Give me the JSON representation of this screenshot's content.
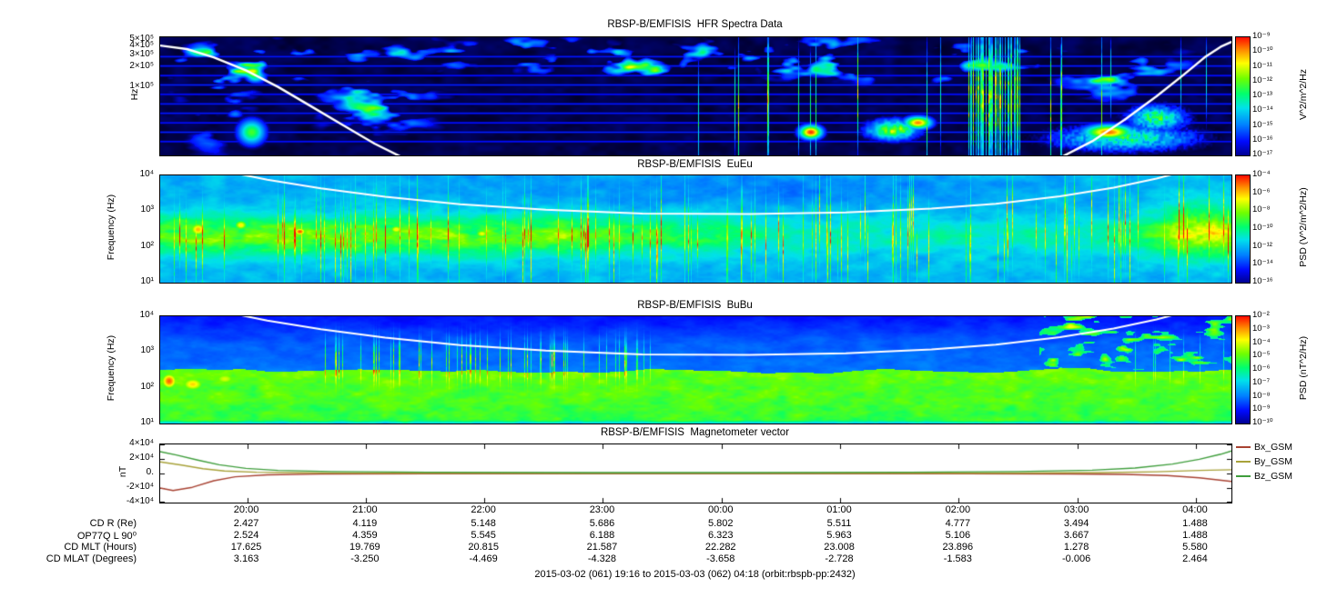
{
  "figure": {
    "caption": "2015-03-02 (061) 19:16 to 2015-03-03 (062) 04:18 (orbit:rbspb-pp:2432)"
  },
  "time_axis": {
    "tick_labels": [
      "20:00",
      "21:00",
      "22:00",
      "23:00",
      "00:00",
      "01:00",
      "02:00",
      "03:00",
      "04:00"
    ],
    "tick_positions": [
      0.0812,
      0.1919,
      0.3026,
      0.4133,
      0.524,
      0.6347,
      0.7454,
      0.8561,
      0.9668
    ]
  },
  "ephemeris_table": {
    "rows": [
      {
        "label": "CD R (Re)",
        "values": [
          "2.427",
          "4.119",
          "5.148",
          "5.686",
          "5.802",
          "5.511",
          "4.777",
          "3.494",
          "1.488"
        ]
      },
      {
        "label": "OP77Q L 90⁰",
        "values": [
          "2.524",
          "4.359",
          "5.545",
          "6.188",
          "6.323",
          "5.963",
          "5.106",
          "3.667",
          "1.488"
        ]
      },
      {
        "label": "CD MLT (Hours)",
        "values": [
          "17.625",
          "19.769",
          "20.815",
          "21.587",
          "22.282",
          "23.008",
          "23.896",
          "1.278",
          "5.580"
        ]
      },
      {
        "label": "CD MLAT (Degrees)",
        "values": [
          "3.163",
          "-3.250",
          "-4.469",
          "-4.328",
          "-3.658",
          "-2.728",
          "-1.583",
          "-0.006",
          "2.464"
        ]
      }
    ]
  },
  "chart_data": [
    {
      "type": "heatmap",
      "title": "RBSP-B/EMFISIS  HFR Spectra Data",
      "ylabel": "Hz",
      "yscale": "log",
      "ylim": [
        10000,
        550000
      ],
      "yticks": [
        {
          "label": "5×10⁵",
          "pos": 0.024
        },
        {
          "label": "4×10⁵",
          "pos": 0.08
        },
        {
          "label": "3×10⁵",
          "pos": 0.152
        },
        {
          "label": "2×10⁵",
          "pos": 0.253
        },
        {
          "label": "1×10⁵",
          "pos": 0.425
        }
      ],
      "colorbar": {
        "label": "V^2/m^2/Hz",
        "tick_labels": [
          "10⁻⁹",
          "10⁻¹⁰",
          "10⁻¹¹",
          "10⁻¹²",
          "10⁻¹³",
          "10⁻¹⁴",
          "10⁻¹⁵",
          "10⁻¹⁶",
          "10⁻¹⁷"
        ]
      },
      "overlay_line": {
        "name": "fce",
        "color": "#ffffff",
        "points": [
          [
            0,
            0.07
          ],
          [
            0.025,
            0.1
          ],
          [
            0.05,
            0.17
          ],
          [
            0.08,
            0.28
          ],
          [
            0.11,
            0.42
          ],
          [
            0.14,
            0.58
          ],
          [
            0.17,
            0.74
          ],
          [
            0.2,
            0.9
          ],
          [
            0.24,
            1.08
          ],
          [
            0.35,
            1.6
          ],
          [
            0.65,
            1.7
          ],
          [
            0.8,
            1.2
          ],
          [
            0.84,
            1.02
          ],
          [
            0.87,
            0.88
          ],
          [
            0.9,
            0.7
          ],
          [
            0.93,
            0.5
          ],
          [
            0.955,
            0.32
          ],
          [
            0.975,
            0.17
          ],
          [
            0.99,
            0.08
          ],
          [
            1,
            0.04
          ]
        ]
      }
    },
    {
      "type": "heatmap",
      "title": "RBSP-B/EMFISIS  EuEu",
      "ylabel": "Frequency (Hz)",
      "yscale": "log",
      "ylim": [
        10,
        10000
      ],
      "yticks": [
        {
          "label": "10⁴",
          "pos": 0
        },
        {
          "label": "10³",
          "pos": 0.333
        },
        {
          "label": "10²",
          "pos": 0.667
        },
        {
          "label": "10¹",
          "pos": 1
        }
      ],
      "colorbar": {
        "label": "PSD (V^2/m^2/Hz)",
        "tick_labels": [
          "10⁻⁴",
          "10⁻⁶",
          "10⁻⁸",
          "10⁻¹⁰",
          "10⁻¹²",
          "10⁻¹⁴",
          "10⁻¹⁶"
        ]
      },
      "overlay_line": {
        "name": "fce",
        "color": "#ffffff",
        "points": [
          [
            0.02,
            -0.12
          ],
          [
            0.06,
            -0.04
          ],
          [
            0.1,
            0.04
          ],
          [
            0.15,
            0.12
          ],
          [
            0.21,
            0.2
          ],
          [
            0.28,
            0.27
          ],
          [
            0.36,
            0.32
          ],
          [
            0.45,
            0.355
          ],
          [
            0.55,
            0.36
          ],
          [
            0.64,
            0.345
          ],
          [
            0.72,
            0.31
          ],
          [
            0.78,
            0.265
          ],
          [
            0.84,
            0.195
          ],
          [
            0.89,
            0.115
          ],
          [
            0.93,
            0.03
          ],
          [
            0.96,
            -0.05
          ]
        ]
      }
    },
    {
      "type": "heatmap",
      "title": "RBSP-B/EMFISIS  BuBu",
      "ylabel": "Frequency (Hz)",
      "yscale": "log",
      "ylim": [
        10,
        10000
      ],
      "yticks": [
        {
          "label": "10⁴",
          "pos": 0
        },
        {
          "label": "10³",
          "pos": 0.333
        },
        {
          "label": "10²",
          "pos": 0.667
        },
        {
          "label": "10¹",
          "pos": 1
        }
      ],
      "colorbar": {
        "label": "PSD (nT^2/Hz)",
        "tick_labels": [
          "10⁻²",
          "10⁻³",
          "10⁻⁴",
          "10⁻⁵",
          "10⁻⁶",
          "10⁻⁷",
          "10⁻⁸",
          "10⁻⁹",
          "10⁻¹⁰"
        ]
      },
      "overlay_line": {
        "name": "fce",
        "color": "#ffffff",
        "points": [
          [
            0.02,
            -0.12
          ],
          [
            0.06,
            -0.04
          ],
          [
            0.1,
            0.04
          ],
          [
            0.15,
            0.12
          ],
          [
            0.21,
            0.2
          ],
          [
            0.28,
            0.27
          ],
          [
            0.36,
            0.32
          ],
          [
            0.45,
            0.355
          ],
          [
            0.55,
            0.36
          ],
          [
            0.64,
            0.345
          ],
          [
            0.72,
            0.31
          ],
          [
            0.78,
            0.265
          ],
          [
            0.84,
            0.195
          ],
          [
            0.89,
            0.115
          ],
          [
            0.93,
            0.03
          ],
          [
            0.96,
            -0.05
          ]
        ]
      }
    },
    {
      "type": "line",
      "title": "RBSP-B/EMFISIS  Magnetometer vector",
      "ylabel": "nT",
      "ylim": [
        -40000,
        40000
      ],
      "yticks": [
        {
          "label": "4×10⁴",
          "pos": 0
        },
        {
          "label": "2×10⁴",
          "pos": 0.25
        },
        {
          "label": "0.",
          "pos": 0.5
        },
        {
          "label": "-2×10⁴",
          "pos": 0.75
        },
        {
          "label": "-4×10⁴",
          "pos": 1
        }
      ],
      "legend": [
        {
          "label": "Bx_GSM",
          "color": "#a84232"
        },
        {
          "label": "By_GSM",
          "color": "#a8a23a"
        },
        {
          "label": "Bz_GSM",
          "color": "#3f9e3c"
        }
      ],
      "series": [
        {
          "name": "Bx_GSM",
          "color": "#a84232",
          "points": [
            [
              0,
              -20000
            ],
            [
              0.012,
              -23500
            ],
            [
              0.03,
              -19000
            ],
            [
              0.05,
              -10000
            ],
            [
              0.07,
              -4500
            ],
            [
              0.1,
              -1800
            ],
            [
              0.15,
              -800
            ],
            [
              0.25,
              -400
            ],
            [
              0.5,
              -300
            ],
            [
              0.75,
              -400
            ],
            [
              0.85,
              -700
            ],
            [
              0.9,
              -1300
            ],
            [
              0.94,
              -2800
            ],
            [
              0.97,
              -6000
            ],
            [
              1,
              -11000
            ]
          ]
        },
        {
          "name": "By_GSM",
          "color": "#a8a23a",
          "points": [
            [
              0,
              16000
            ],
            [
              0.02,
              11500
            ],
            [
              0.04,
              6500
            ],
            [
              0.06,
              3500
            ],
            [
              0.09,
              1700
            ],
            [
              0.13,
              900
            ],
            [
              0.2,
              500
            ],
            [
              0.4,
              300
            ],
            [
              0.6,
              300
            ],
            [
              0.8,
              600
            ],
            [
              0.88,
              1200
            ],
            [
              0.93,
              2400
            ],
            [
              0.97,
              4200
            ],
            [
              1,
              5200
            ]
          ]
        },
        {
          "name": "Bz_GSM",
          "color": "#3f9e3c",
          "points": [
            [
              0,
              30000
            ],
            [
              0.015,
              25500
            ],
            [
              0.035,
              18500
            ],
            [
              0.055,
              12000
            ],
            [
              0.08,
              7000
            ],
            [
              0.11,
              4200
            ],
            [
              0.16,
              2600
            ],
            [
              0.25,
              1700
            ],
            [
              0.4,
              1200
            ],
            [
              0.55,
              1200
            ],
            [
              0.7,
              1700
            ],
            [
              0.8,
              2700
            ],
            [
              0.87,
              4500
            ],
            [
              0.91,
              7500
            ],
            [
              0.945,
              13000
            ],
            [
              0.97,
              19500
            ],
            [
              0.99,
              26500
            ],
            [
              1,
              31000
            ]
          ]
        }
      ]
    }
  ]
}
